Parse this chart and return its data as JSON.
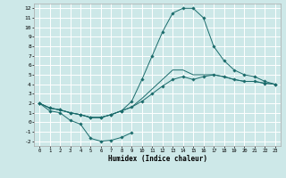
{
  "background_color": "#cde8e8",
  "grid_color": "#ffffff",
  "line_color": "#1a6b6b",
  "marker_color": "#1a6b6b",
  "xlabel": "Humidex (Indice chaleur)",
  "xlim": [
    -0.5,
    23.5
  ],
  "ylim": [
    -2.5,
    12.5
  ],
  "xticks": [
    0,
    1,
    2,
    3,
    4,
    5,
    6,
    7,
    8,
    9,
    10,
    11,
    12,
    13,
    14,
    15,
    16,
    17,
    18,
    19,
    20,
    21,
    22,
    23
  ],
  "yticks": [
    -2,
    -1,
    0,
    1,
    2,
    3,
    4,
    5,
    6,
    7,
    8,
    9,
    10,
    11,
    12
  ],
  "series": [
    {
      "x": [
        0,
        1,
        2,
        3,
        4,
        5,
        6,
        7,
        8,
        9
      ],
      "y": [
        2,
        1.2,
        1.0,
        0.2,
        -0.2,
        -1.7,
        -2.0,
        -1.9,
        -1.6,
        -1.1
      ],
      "has_markers": true
    },
    {
      "x": [
        0,
        1,
        2,
        3,
        4,
        5,
        6,
        7,
        8,
        9,
        10,
        11,
        12,
        13,
        14,
        15,
        16,
        17,
        18,
        19,
        20,
        21,
        22,
        23
      ],
      "y": [
        2,
        1.5,
        1.3,
        1.0,
        0.8,
        0.5,
        0.5,
        0.8,
        1.2,
        1.6,
        2.2,
        3.0,
        3.8,
        4.5,
        4.8,
        4.5,
        4.8,
        5.0,
        4.8,
        4.5,
        4.3,
        4.3,
        4.1,
        4.0
      ],
      "has_markers": true
    },
    {
      "x": [
        0,
        1,
        2,
        3,
        4,
        5,
        6,
        7,
        8,
        9,
        10,
        11,
        12,
        13,
        14,
        15,
        16,
        17,
        18,
        19,
        20,
        21,
        22,
        23
      ],
      "y": [
        2,
        1.5,
        1.3,
        1.0,
        0.8,
        0.5,
        0.5,
        0.8,
        1.2,
        1.6,
        2.5,
        3.5,
        4.5,
        5.5,
        5.5,
        5.0,
        5.0,
        5.0,
        4.8,
        4.5,
        4.3,
        4.3,
        4.1,
        4.0
      ],
      "has_markers": false
    },
    {
      "x": [
        0,
        1,
        2,
        3,
        4,
        5,
        6,
        7,
        8,
        9,
        10,
        11,
        12,
        13,
        14,
        15,
        16,
        17,
        18,
        19,
        20,
        21,
        22,
        23
      ],
      "y": [
        2.0,
        1.5,
        1.3,
        1.0,
        0.8,
        0.5,
        0.5,
        0.8,
        1.2,
        2.2,
        4.5,
        7.0,
        9.5,
        11.5,
        12.0,
        12.0,
        11.0,
        8.0,
        6.5,
        5.5,
        5.0,
        4.8,
        4.3,
        4.0
      ],
      "has_markers": true
    }
  ]
}
